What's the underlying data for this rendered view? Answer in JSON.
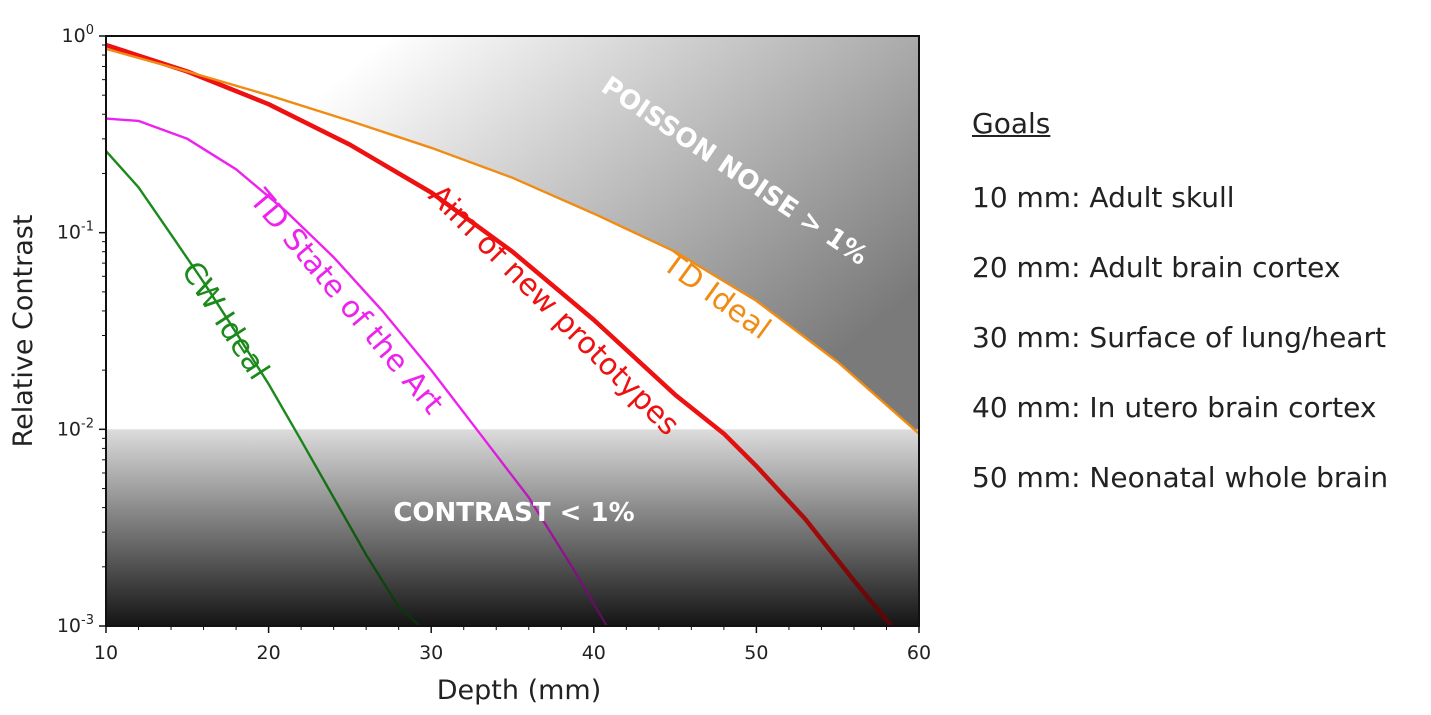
{
  "chart_data": {
    "type": "line",
    "xlabel": "Depth (mm)",
    "ylabel": "Relative Contrast",
    "xlim": [
      10,
      60
    ],
    "ylim": [
      0.001,
      1
    ],
    "yscale": "log",
    "grid": false,
    "x_ticks": [
      10,
      20,
      30,
      40,
      50,
      60
    ],
    "y_ticks": [
      {
        "base": "10",
        "exp": "0",
        "value": 1
      },
      {
        "base": "10",
        "exp": "-1",
        "value": 0.1
      },
      {
        "base": "10",
        "exp": "-2",
        "value": 0.01
      },
      {
        "base": "10",
        "exp": "-3",
        "value": 0.001
      }
    ],
    "regions": [
      {
        "label": "POISSON NOISE > 1%"
      },
      {
        "label": "CONTRAST < 1%",
        "y_max": 0.01
      }
    ],
    "series": [
      {
        "name": "CW Ideal",
        "color": "#1a8a1a",
        "x": [
          10,
          12,
          14,
          16,
          18,
          20,
          22,
          24,
          26,
          28,
          29.3
        ],
        "y": [
          0.26,
          0.17,
          0.098,
          0.056,
          0.031,
          0.017,
          0.0088,
          0.0045,
          0.0023,
          0.00125,
          0.001
        ]
      },
      {
        "name": "TD State of the Art",
        "color": "#ee22ee",
        "x": [
          10,
          12,
          15,
          18,
          21,
          24,
          27,
          30,
          33,
          36,
          39,
          40.8
        ],
        "y": [
          0.38,
          0.37,
          0.3,
          0.21,
          0.13,
          0.075,
          0.04,
          0.02,
          0.0095,
          0.0045,
          0.0018,
          0.001
        ]
      },
      {
        "name": "Aim of new prototypes",
        "color": "#ee1111",
        "x": [
          10,
          15,
          20,
          25,
          30,
          35,
          40,
          45,
          48,
          50,
          53,
          56,
          58.3
        ],
        "y": [
          0.9,
          0.66,
          0.45,
          0.28,
          0.16,
          0.08,
          0.036,
          0.015,
          0.0095,
          0.0065,
          0.0035,
          0.0017,
          0.001
        ]
      },
      {
        "name": "TD Ideal",
        "color": "#f08c14",
        "x": [
          10,
          15,
          20,
          25,
          30,
          35,
          40,
          45,
          50,
          55,
          60
        ],
        "y": [
          0.86,
          0.66,
          0.5,
          0.37,
          0.27,
          0.19,
          0.125,
          0.08,
          0.045,
          0.022,
          0.0095
        ]
      }
    ]
  },
  "goals": {
    "title": "Goals",
    "items": [
      "10 mm: Adult skull",
      "20 mm: Adult brain cortex",
      "30 mm: Surface of lung/heart",
      "40 mm: In utero brain cortex",
      "50 mm: Neonatal whole brain"
    ]
  }
}
